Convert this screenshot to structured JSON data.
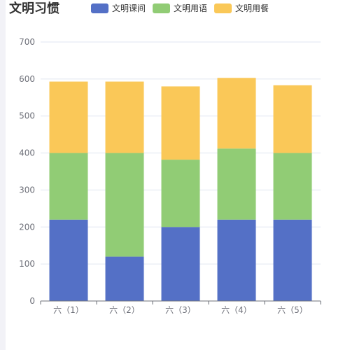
{
  "chart_data": {
    "type": "bar",
    "stacked": true,
    "title": "文明习惯",
    "categories": [
      "六（1）",
      "六（2）",
      "六（3）",
      "六（4）",
      "六（5）"
    ],
    "series": [
      {
        "name": "文明课间",
        "color": "#5470c6",
        "values": [
          220,
          120,
          200,
          220,
          220
        ]
      },
      {
        "name": "文明用语",
        "color": "#91cc75",
        "values": [
          180,
          280,
          182,
          192,
          180
        ]
      },
      {
        "name": "文明用餐",
        "color": "#fac858",
        "values": [
          193,
          193,
          198,
          191,
          183
        ]
      }
    ],
    "ylim": [
      0,
      700
    ],
    "yticks": [
      0,
      100,
      200,
      300,
      400,
      500,
      600,
      700
    ],
    "legend_position": "top",
    "grid": true
  }
}
